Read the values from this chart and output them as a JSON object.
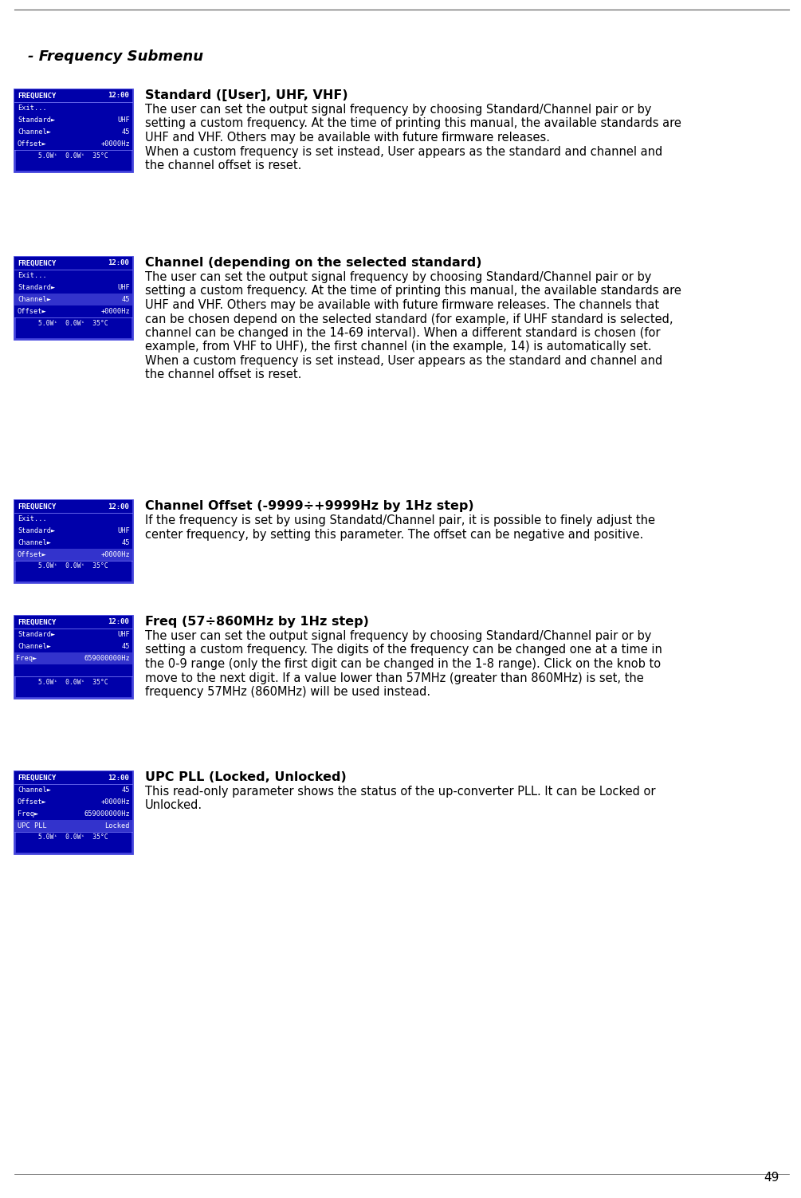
{
  "page_number": "49",
  "background_color": "#ffffff",
  "text_color": "#000000",
  "section_title": "- Frequency Submenu",
  "sections": [
    {
      "heading": "Standard ([User], UHF, VHF)",
      "body_lines": [
        "The user can set the output signal frequency by choosing Standard/Channel pair or by",
        "setting a custom frequency. At the time of printing this manual, the available standards are",
        "UHF and VHF. Others may be available with future firmware releases.",
        "When a custom frequency is set instead, User appears as the standard and channel and",
        "the channel offset is reset."
      ],
      "screen": {
        "title": "FREQUENCY",
        "time": "12:00",
        "rows": [
          {
            "left": "Exit...",
            "right": "",
            "highlight": false,
            "indent": false
          },
          {
            "left": "Standard►",
            "right": "UHF",
            "highlight": false,
            "indent": false
          },
          {
            "left": "Channel►",
            "right": "45",
            "highlight": false,
            "indent": false
          },
          {
            "left": "Offset►",
            "right": "+0000Hz",
            "highlight": false,
            "indent": false
          }
        ],
        "footer": "5.0Wⁱ  0.0Wⁱ  35°C"
      }
    },
    {
      "heading": "Channel (depending on the selected standard)",
      "body_lines": [
        "The user can set the output signal frequency by choosing Standard/Channel pair or by",
        "setting a custom frequency. At the time of printing this manual, the available standards are",
        "UHF and VHF. Others may be available with future firmware releases. The channels that",
        "can be chosen depend on the selected standard (for example, if UHF standard is selected,",
        "channel can be changed in the 14-69 interval). When a different standard is chosen (for",
        "example, from VHF to UHF), the first channel (in the example, 14) is automatically set.",
        "When a custom frequency is set instead, User appears as the standard and channel and",
        "the channel offset is reset."
      ],
      "screen": {
        "title": "FREQUENCY",
        "time": "12:00",
        "rows": [
          {
            "left": "Exit...",
            "right": "",
            "highlight": false,
            "indent": false
          },
          {
            "left": "Standard►",
            "right": "UHF",
            "highlight": false,
            "indent": false
          },
          {
            "left": "Channel►",
            "right": "45",
            "highlight": true,
            "indent": false
          },
          {
            "left": "Offset►",
            "right": "+0000Hz",
            "highlight": false,
            "indent": false
          }
        ],
        "footer": "5.0Wⁱ  0.0Wⁱ  35°C"
      }
    },
    {
      "heading": "Channel Offset (-9999÷+9999Hz by 1Hz step)",
      "body_lines": [
        "If the frequency is set by using Standatd/Channel pair, it is possible to finely adjust the",
        "center frequency, by setting this parameter. The offset can be negative and positive."
      ],
      "screen": {
        "title": "FREQUENCY",
        "time": "12:00",
        "rows": [
          {
            "left": "Exit...",
            "right": "",
            "highlight": false,
            "indent": false
          },
          {
            "left": "Standard►",
            "right": "UHF",
            "highlight": false,
            "indent": false
          },
          {
            "left": "Channel►",
            "right": "45",
            "highlight": false,
            "indent": false
          },
          {
            "left": "Offset►",
            "right": "+0000Hz",
            "highlight": true,
            "indent": false
          }
        ],
        "footer": "5.0Wⁱ  0.0Wⁱ  35°C"
      }
    },
    {
      "heading": "Freq (57÷860MHz by 1Hz step)",
      "body_lines": [
        "The user can set the output signal frequency by choosing Standard/Channel pair or by",
        "setting a custom frequency. The digits of the frequency can be changed one at a time in",
        "the 0-9 range (only the first digit can be changed in the 1-8 range). Click on the knob to",
        "move to the next digit. If a value lower than 57MHz (greater than 860MHz) is set, the",
        "frequency 57MHz (860MHz) will be used instead."
      ],
      "screen": {
        "title": "FREQUENCY",
        "time": "12:00",
        "rows": [
          {
            "left": "Standard►",
            "right": "UHF",
            "highlight": false,
            "indent": false
          },
          {
            "left": "Channel►",
            "right": "45",
            "highlight": false,
            "indent": false
          },
          {
            "left": "Freq►",
            "right": "659000000Hz",
            "highlight": true,
            "indent": true
          },
          {
            "left": "",
            "right": "",
            "highlight": false,
            "indent": false
          }
        ],
        "footer": "5.0Wⁱ  0.0Wⁱ  35°C"
      }
    },
    {
      "heading": "UPC PLL (Locked, Unlocked)",
      "body_lines": [
        "This read-only parameter shows the status of the up-converter PLL. It can be Locked or",
        "Unlocked."
      ],
      "screen": {
        "title": "FREQUENCY",
        "time": "12:00",
        "rows": [
          {
            "left": "Channel►",
            "right": "45",
            "highlight": false,
            "indent": false
          },
          {
            "left": "Offset►",
            "right": "+0000Hz",
            "highlight": false,
            "indent": false
          },
          {
            "left": "Freq►",
            "right": "659000000Hz",
            "highlight": false,
            "indent": false
          },
          {
            "left": "UPC PLL",
            "right": "Locked",
            "highlight": true,
            "indent": false
          }
        ],
        "footer": "5.0Wⁱ  0.0Wⁱ  35°C"
      }
    }
  ],
  "screen_bg": "#0000aa",
  "screen_highlight_bg": "#3333cc",
  "screen_fg": "#ffffff",
  "screen_border_color": "#4444dd",
  "screen_title_color": "#ffffff",
  "screen_footer_color": "#ffffff"
}
